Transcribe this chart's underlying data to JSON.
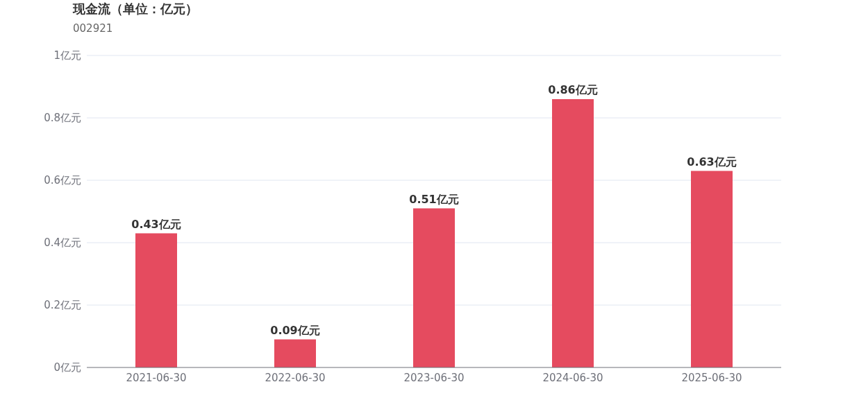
{
  "chart_data": {
    "type": "bar",
    "title": "现金流（单位：亿元）",
    "subtitle": "002921",
    "categories": [
      "2021-06-30",
      "2022-06-30",
      "2023-06-30",
      "2024-06-30",
      "2025-06-30"
    ],
    "values": [
      0.43,
      0.09,
      0.51,
      0.86,
      0.63
    ],
    "value_labels": [
      "0.43亿元",
      "0.09亿元",
      "0.51亿元",
      "0.86亿元",
      "0.63亿元"
    ],
    "color": "#e54b5f",
    "ylim": [
      0,
      1
    ],
    "yticks": [
      {
        "value": 0,
        "label": "0亿元"
      },
      {
        "value": 0.2,
        "label": "0.2亿元"
      },
      {
        "value": 0.4,
        "label": "0.4亿元"
      },
      {
        "value": 0.6,
        "label": "0.6亿元"
      },
      {
        "value": 0.8,
        "label": "0.8亿元"
      },
      {
        "value": 1,
        "label": "1亿元"
      }
    ],
    "grid": "y",
    "legend": false
  }
}
